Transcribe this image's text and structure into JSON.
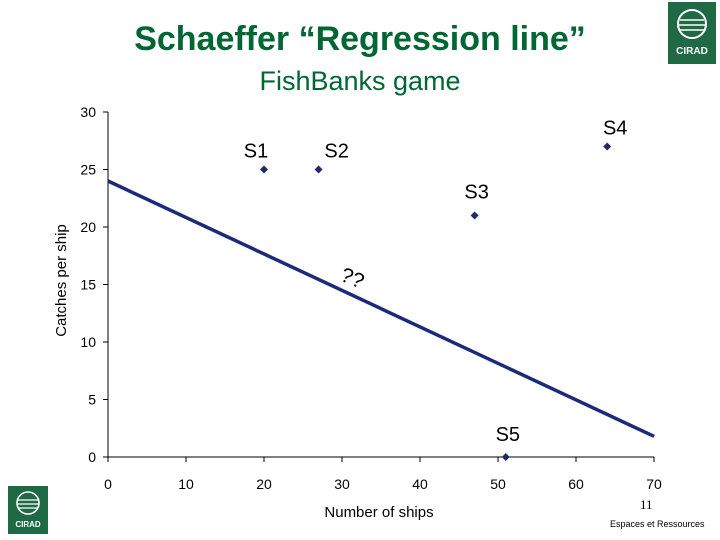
{
  "slide": {
    "title": "Schaeffer “Regression line”",
    "subtitle": "FishBanks game",
    "page_number": "11",
    "footer": "Espaces et Ressources",
    "logo_text": "CIRAD"
  },
  "colors": {
    "title": "#006633",
    "marker": "#1f2a6b",
    "line": "#1c2a7a",
    "logo": "#1f6a45"
  },
  "chart_data": {
    "type": "scatter",
    "title": "",
    "xlabel": "Number of ships",
    "ylabel": "Catches per ship",
    "xlim": [
      0,
      70
    ],
    "ylim": [
      0,
      30
    ],
    "x_ticks": [
      0,
      10,
      20,
      30,
      40,
      50,
      60,
      70
    ],
    "y_ticks": [
      0,
      5,
      10,
      15,
      20,
      25,
      30
    ],
    "grid": false,
    "points": [
      {
        "label": "S1",
        "x": 20,
        "y": 25
      },
      {
        "label": "S2",
        "x": 27,
        "y": 25
      },
      {
        "label": "S3",
        "x": 47,
        "y": 21
      },
      {
        "label": "S4",
        "x": 64,
        "y": 27
      },
      {
        "label": "S5",
        "x": 51,
        "y": 0
      }
    ],
    "regression_line": {
      "x": [
        0,
        70
      ],
      "y": [
        24,
        1.8
      ]
    },
    "annotation": {
      "text": "??",
      "x": 31,
      "y": 15
    }
  }
}
